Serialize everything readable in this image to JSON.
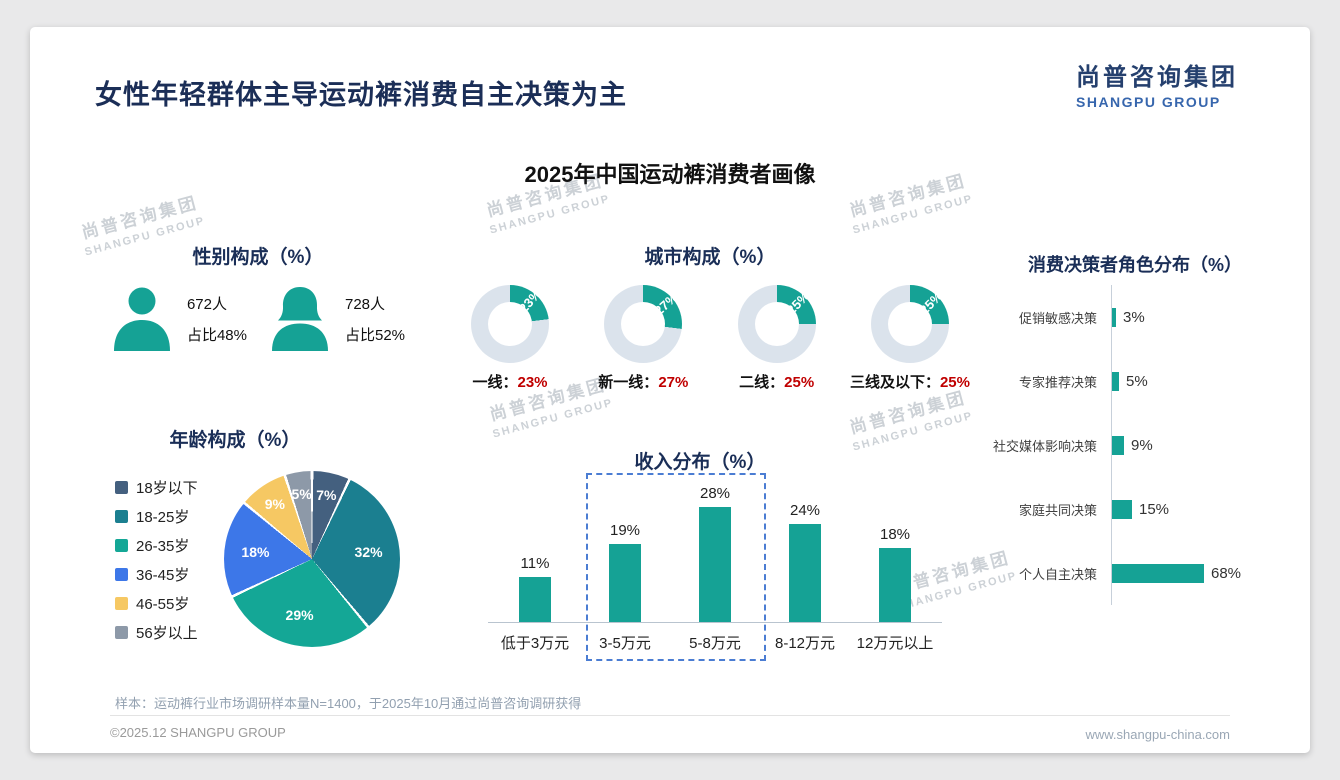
{
  "header": {
    "title": "女性年轻群体主导运动裤消费自主决策为主",
    "logo_cn": "尚普咨询集团",
    "logo_en": "SHANGPU GROUP"
  },
  "main_title": "2025年中国运动裤消费者画像",
  "watermark": {
    "line1": "尚普咨询集团",
    "line2": "SHANGPU GROUP"
  },
  "colors": {
    "teal": "#15a295",
    "navy": "#1a2e57",
    "red": "#c00000",
    "donut_rest": "#dbe3ec",
    "dashed_box": "#4b7dd3"
  },
  "chart_data": [
    {
      "id": "gender_stats",
      "type": "table",
      "title": "性别构成（%）",
      "items": [
        {
          "icon": "male",
          "count": "672人",
          "share": "占比48%"
        },
        {
          "icon": "female",
          "count": "728人",
          "share": "占比52%"
        }
      ]
    },
    {
      "id": "city_donuts",
      "type": "pie",
      "subtype": "donut-group",
      "title": "城市构成（%）",
      "categories": [
        "一线",
        "新一线",
        "二线",
        "三线及以下"
      ],
      "legend_labels": [
        "一线：",
        "新一线：",
        "二线：",
        "三线及以下："
      ],
      "values": [
        23,
        27,
        25,
        25
      ],
      "value_labels": [
        "23%",
        "27%",
        "25%",
        "25%"
      ]
    },
    {
      "id": "decision_roles",
      "type": "bar",
      "subtype": "horizontal",
      "title": "消费决策者角色分布（%）",
      "categories": [
        "促销敏感决策",
        "专家推荐决策",
        "社交媒体影响决策",
        "家庭共同决策",
        "个人自主决策"
      ],
      "values": [
        3,
        5,
        9,
        15,
        68
      ],
      "value_labels": [
        "3%",
        "5%",
        "9%",
        "15%",
        "68%"
      ],
      "xlim": [
        0,
        80
      ]
    },
    {
      "id": "age_pie",
      "type": "pie",
      "title": "年龄构成（%）",
      "categories": [
        "18岁以下",
        "18-25岁",
        "26-35岁",
        "36-45岁",
        "46-55岁",
        "56岁以上"
      ],
      "values": [
        7,
        32,
        29,
        18,
        9,
        5
      ],
      "value_labels": [
        "7%",
        "32%",
        "29%",
        "18%",
        "9%",
        "5%"
      ],
      "colors": [
        "#44607f",
        "#1b7f90",
        "#14a796",
        "#3d77e8",
        "#f6c863",
        "#8d99a8"
      ]
    },
    {
      "id": "income_bars",
      "type": "bar",
      "title": "收入分布（%）",
      "categories": [
        "低于3万元",
        "3-5万元",
        "5-8万元",
        "8-12万元",
        "12万元以上"
      ],
      "values": [
        11,
        19,
        28,
        24,
        18
      ],
      "value_labels": [
        "11%",
        "19%",
        "28%",
        "24%",
        "18%"
      ],
      "highlight_box_categories": [
        "3-5万元",
        "5-8万元"
      ],
      "ylim": [
        0,
        30
      ]
    }
  ],
  "footer": {
    "note": "样本：运动裤行业市场调研样本量N=1400，于2025年10月通过尚普咨询调研获得",
    "copyright": "©2025.12 SHANGPU GROUP",
    "website": "www.shangpu-china.com"
  }
}
